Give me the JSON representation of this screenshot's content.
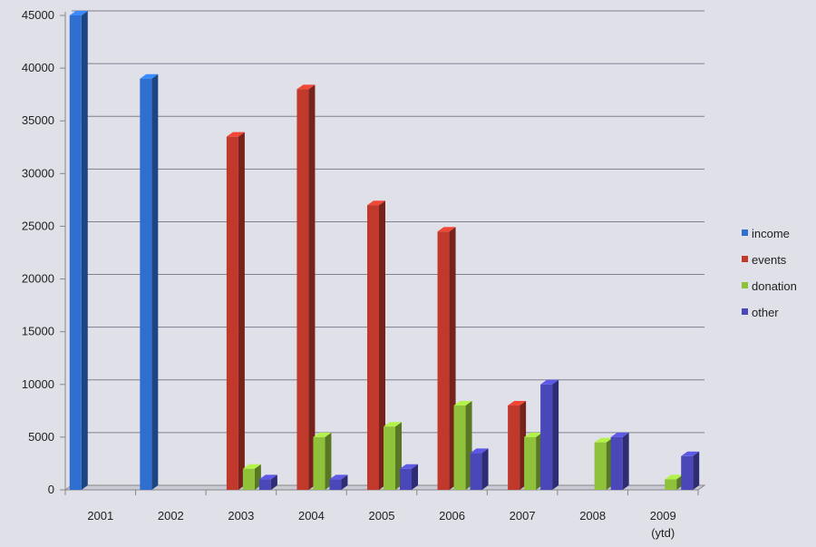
{
  "chart_data": {
    "type": "bar",
    "categories": [
      "2001",
      "2002",
      "2003",
      "2004",
      "2005",
      "2006",
      "2007",
      "2008",
      "2009"
    ],
    "category_sublabels": [
      "",
      "",
      "",
      "",
      "",
      "",
      "",
      "",
      "(ytd)"
    ],
    "series": [
      {
        "name": "income",
        "color": "#2e6fd0",
        "values": [
          45000,
          39000,
          0,
          0,
          0,
          0,
          0,
          0,
          0
        ]
      },
      {
        "name": "events",
        "color": "#c0392b",
        "values": [
          0,
          0,
          33500,
          38000,
          27000,
          24500,
          8000,
          0,
          0
        ]
      },
      {
        "name": "donation",
        "color": "#8fc23a",
        "values": [
          0,
          0,
          2000,
          5000,
          6000,
          8000,
          5000,
          4500,
          1000
        ]
      },
      {
        "name": "other",
        "color": "#4a47b8",
        "values": [
          0,
          0,
          1000,
          1000,
          2000,
          3500,
          10000,
          5000,
          3200
        ]
      }
    ],
    "ylim": [
      0,
      45000
    ],
    "yticks": [
      0,
      5000,
      10000,
      15000,
      20000,
      25000,
      30000,
      35000,
      40000,
      45000
    ],
    "grid": true,
    "legend_position": "right",
    "title": "",
    "xlabel": "",
    "ylabel": ""
  }
}
